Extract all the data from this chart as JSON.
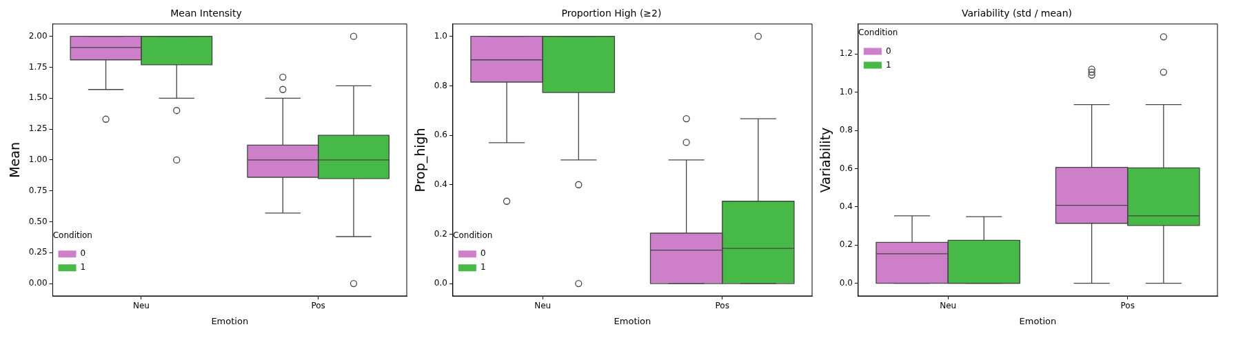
{
  "chart_data": [
    {
      "type": "box",
      "title": "Mean Intensity",
      "xlabel": "Emotion",
      "ylabel": "Mean",
      "legend_title": "Condition",
      "legend": "bottom left",
      "grid": false,
      "categories": [
        "Neu",
        "Pos"
      ],
      "ylim": [
        -0.1,
        2.1
      ],
      "yticks": [
        {
          "value": 0,
          "label": "0.00"
        },
        {
          "value": 0.25,
          "label": "0.25"
        },
        {
          "value": 0.5,
          "label": "0.50"
        },
        {
          "value": 0.75,
          "label": "0.75"
        },
        {
          "value": 1,
          "label": "1.00"
        },
        {
          "value": 1.25,
          "label": "1.25"
        },
        {
          "value": 1.5,
          "label": "1.50"
        },
        {
          "value": 1.75,
          "label": "1.75"
        },
        {
          "value": 2,
          "label": "2.00"
        }
      ],
      "series": [
        {
          "name": "0",
          "color": "#ce7fca",
          "boxes": [
            {
              "low": 1.57,
              "q1": 1.81,
              "median": 1.91,
              "q3": 2.0,
              "high": 2.0,
              "outliers": [
                1.33
              ]
            },
            {
              "low": 0.57,
              "q1": 0.86,
              "median": 1.0,
              "q3": 1.12,
              "high": 1.5,
              "outliers": [
                1.57,
                1.67
              ]
            }
          ]
        },
        {
          "name": "1",
          "color": "#46b946",
          "boxes": [
            {
              "low": 1.5,
              "q1": 1.77,
              "median": 2.0,
              "q3": 2.0,
              "high": 2.0,
              "outliers": [
                1.4,
                1.0
              ]
            },
            {
              "low": 0.38,
              "q1": 0.85,
              "median": 1.0,
              "q3": 1.2,
              "high": 1.6,
              "outliers": [
                2.0,
                0.0
              ]
            }
          ]
        }
      ]
    },
    {
      "type": "box",
      "title": "Proportion High (≥2)",
      "xlabel": "Emotion",
      "ylabel": "Prop_high",
      "legend_title": "Condition",
      "legend": "bottom left",
      "grid": false,
      "categories": [
        "Neu",
        "Pos"
      ],
      "ylim": [
        -0.05,
        1.05
      ],
      "yticks": [
        {
          "value": 0,
          "label": "0.0"
        },
        {
          "value": 0.2,
          "label": "0.2"
        },
        {
          "value": 0.4,
          "label": "0.4"
        },
        {
          "value": 0.6,
          "label": "0.6"
        },
        {
          "value": 0.8,
          "label": "0.8"
        },
        {
          "value": 1,
          "label": "1.0"
        }
      ],
      "series": [
        {
          "name": "0",
          "color": "#ce7fca",
          "boxes": [
            {
              "low": 0.57,
              "q1": 0.815,
              "median": 0.905,
              "q3": 1.0,
              "high": 1.0,
              "outliers": [
                0.333
              ]
            },
            {
              "low": 0.0,
              "q1": 0.0,
              "median": 0.135,
              "q3": 0.204,
              "high": 0.5,
              "outliers": [
                0.571,
                0.667
              ]
            }
          ]
        },
        {
          "name": "1",
          "color": "#46b946",
          "boxes": [
            {
              "low": 0.5,
              "q1": 0.773,
              "median": 1.0,
              "q3": 1.0,
              "high": 1.0,
              "outliers": [
                0.4,
                0.0
              ]
            },
            {
              "low": 0.0,
              "q1": 0.0,
              "median": 0.142,
              "q3": 0.333,
              "high": 0.667,
              "outliers": [
                1.0
              ]
            }
          ]
        }
      ]
    },
    {
      "type": "box",
      "title": "Variability (std / mean)",
      "xlabel": "Emotion",
      "ylabel": "Variability",
      "legend_title": "Condition",
      "legend": "top left",
      "grid": false,
      "categories": [
        "Neu",
        "Pos"
      ],
      "ylim": [
        -0.066,
        1.357
      ],
      "yticks": [
        {
          "value": 0,
          "label": "0.0"
        },
        {
          "value": 0.2,
          "label": "0.2"
        },
        {
          "value": 0.4,
          "label": "0.4"
        },
        {
          "value": 0.6,
          "label": "0.6"
        },
        {
          "value": 0.8,
          "label": "0.8"
        },
        {
          "value": 1,
          "label": "1.0"
        },
        {
          "value": 1.2,
          "label": "1.2"
        }
      ],
      "series": [
        {
          "name": "0",
          "color": "#ce7fca",
          "boxes": [
            {
              "low": 0.0,
              "q1": 0.0,
              "median": 0.155,
              "q3": 0.214,
              "high": 0.353
            },
            {
              "low": 0.0,
              "q1": 0.314,
              "median": 0.408,
              "q3": 0.607,
              "high": 0.935,
              "outliers": [
                1.09,
                1.105,
                1.12
              ]
            }
          ]
        },
        {
          "name": "1",
          "color": "#46b946",
          "boxes": [
            {
              "low": 0.0,
              "q1": 0.0,
              "median": 0.0,
              "q3": 0.225,
              "high": 0.349
            },
            {
              "low": 0.0,
              "q1": 0.303,
              "median": 0.353,
              "q3": 0.604,
              "high": 0.935,
              "outliers": [
                1.105,
                1.29
              ]
            }
          ]
        }
      ]
    }
  ]
}
